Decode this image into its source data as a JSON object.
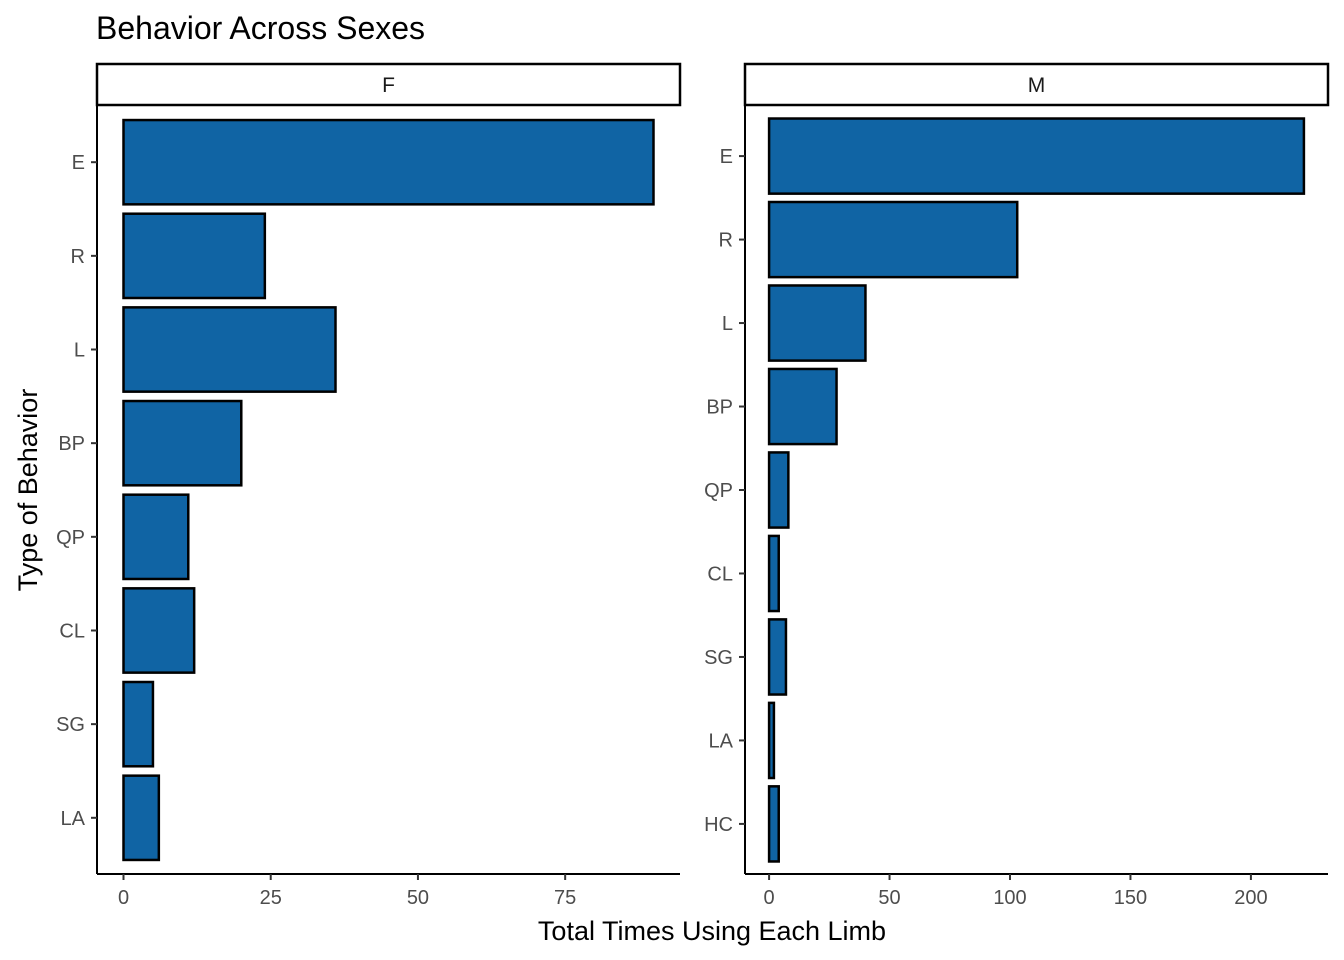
{
  "chart_data": {
    "type": "bar",
    "orientation": "horizontal",
    "title": "Behavior Across Sexes",
    "xlabel": "Total Times Using Each Limb",
    "ylabel": "Type of Behavior",
    "bar_color": "#1064a4",
    "bar_outline": "#000000",
    "grid": false,
    "facets": [
      {
        "label": "F",
        "categories": [
          "E",
          "R",
          "L",
          "BP",
          "QP",
          "CL",
          "SG",
          "LA"
        ],
        "values": [
          90,
          24,
          36,
          20,
          11,
          12,
          5,
          6
        ],
        "xlim": [
          -4.5,
          94.5
        ],
        "xticks": [
          0,
          25,
          50,
          75
        ],
        "xtick_labels": [
          "0",
          "25",
          "50",
          "75"
        ]
      },
      {
        "label": "M",
        "categories": [
          "E",
          "R",
          "L",
          "BP",
          "QP",
          "CL",
          "SG",
          "LA",
          "HC"
        ],
        "values": [
          222,
          103,
          40,
          28,
          8,
          4,
          7,
          2,
          4
        ],
        "xlim": [
          -10,
          232
        ],
        "xticks": [
          0,
          50,
          100,
          150,
          200
        ],
        "xtick_labels": [
          "0",
          "50",
          "100",
          "150",
          "200"
        ]
      }
    ]
  }
}
